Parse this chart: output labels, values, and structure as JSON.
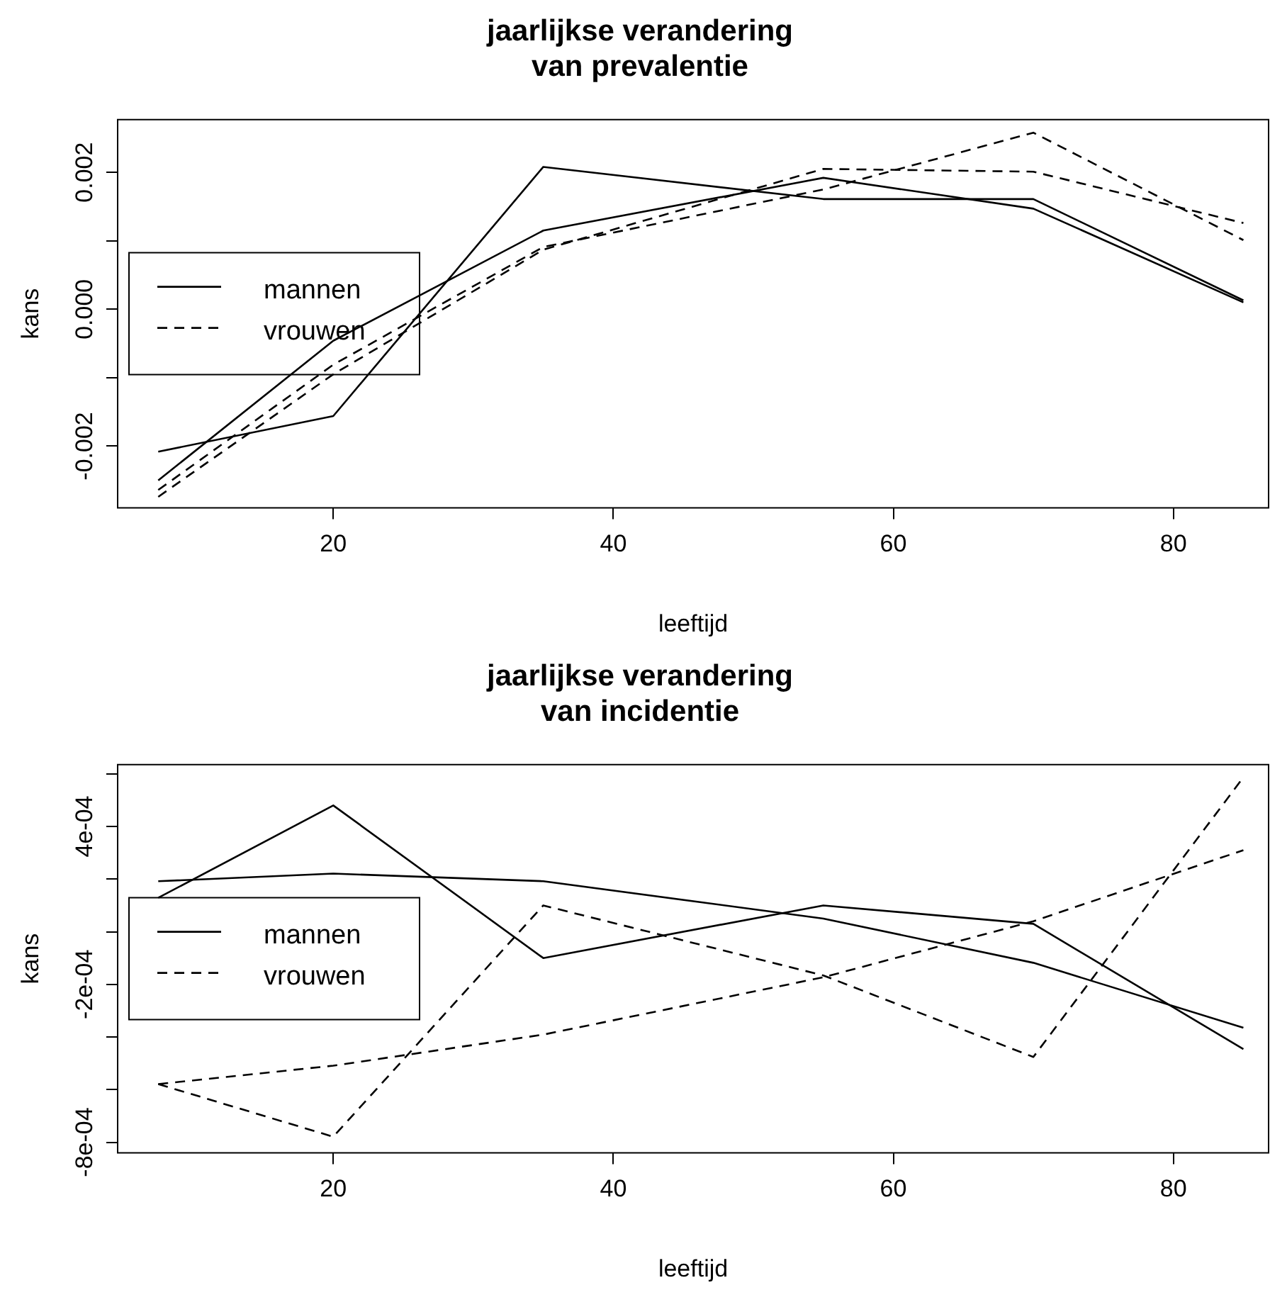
{
  "chart_data": [
    {
      "type": "line",
      "title": "jaarlijkse verandering\nvan prevalentie",
      "xlabel": "leeftijd",
      "ylabel": "kans",
      "x": [
        7.5,
        20,
        35,
        55,
        70,
        85
      ],
      "series": [
        {
          "name": "mannen",
          "color": "#000000",
          "line_style": "solid",
          "values": [
            -0.00208,
            -0.00156,
            0.00208,
            0.00161,
            0.00161,
            0.00013
          ]
        },
        {
          "color": "#000000",
          "line_style": "solid",
          "values": [
            -0.0025,
            -0.00046,
            0.00115,
            0.00192,
            0.00147,
            0.0001
          ]
        },
        {
          "name": "vrouwen",
          "color": "#000000",
          "line_style": "dashed",
          "values": [
            -0.00264,
            -0.00081,
            0.00091,
            0.00175,
            0.00258,
            0.00101
          ]
        },
        {
          "color": "#000000",
          "line_style": "dashed",
          "values": [
            -0.00274,
            -0.00095,
            0.00087,
            0.00205,
            0.00201,
            0.00126
          ]
        }
      ],
      "xlim": [
        4.6,
        86.8
      ],
      "xticks": [
        20,
        40,
        60,
        80
      ],
      "ylim": [
        -0.0029,
        0.00277
      ],
      "yticks": [
        {
          "value": -0.002,
          "label": "-0.002"
        },
        {
          "value": -0.001,
          "label": null
        },
        {
          "value": 0,
          "label": "0.000"
        },
        {
          "value": 0.001,
          "label": null
        },
        {
          "value": 0.002,
          "label": "0.002"
        }
      ],
      "grid": false,
      "legend": "left",
      "marker": "none"
    },
    {
      "type": "line",
      "title": "jaarlijkse verandering\nvan incidentie",
      "xlabel": "leeftijd",
      "ylabel": "kans",
      "x": [
        7.5,
        20,
        35,
        55,
        70,
        85
      ],
      "series": [
        {
          "name": "mannen",
          "color": "#000000",
          "line_style": "solid",
          "values": [
            0.000129,
            0.00048,
            -0.0001,
            0.0001,
            3e-05,
            -0.000446
          ]
        },
        {
          "color": "#000000",
          "line_style": "solid",
          "values": [
            0.000192,
            0.000221,
            0.000192,
            5e-05,
            -0.000118,
            -0.000365
          ]
        },
        {
          "name": "vrouwen",
          "color": "#000000",
          "line_style": "dashed",
          "values": [
            -0.000579,
            -0.000779,
            0.0001,
            -0.000166,
            -0.000476,
            0.000587
          ]
        },
        {
          "color": "#000000",
          "line_style": "dashed",
          "values": [
            -0.000579,
            -0.000509,
            -0.000391,
            -0.000173,
            4e-05,
            0.00031
          ]
        }
      ],
      "xlim": [
        4.6,
        86.8
      ],
      "xticks": [
        20,
        40,
        60,
        80
      ],
      "ylim": [
        -0.00084,
        0.000635
      ],
      "yticks": [
        {
          "value": -0.0008,
          "label": "-8e-04"
        },
        {
          "value": -0.0006,
          "label": null
        },
        {
          "value": -0.0004,
          "label": null
        },
        {
          "value": -0.0002,
          "label": "-2e-04"
        },
        {
          "value": 0,
          "label": null
        },
        {
          "value": 0.0002,
          "label": null
        },
        {
          "value": 0.0004,
          "label": "4e-04"
        },
        {
          "value": 0.0006,
          "label": null
        }
      ],
      "grid": false,
      "legend": "left",
      "marker": "none"
    }
  ]
}
